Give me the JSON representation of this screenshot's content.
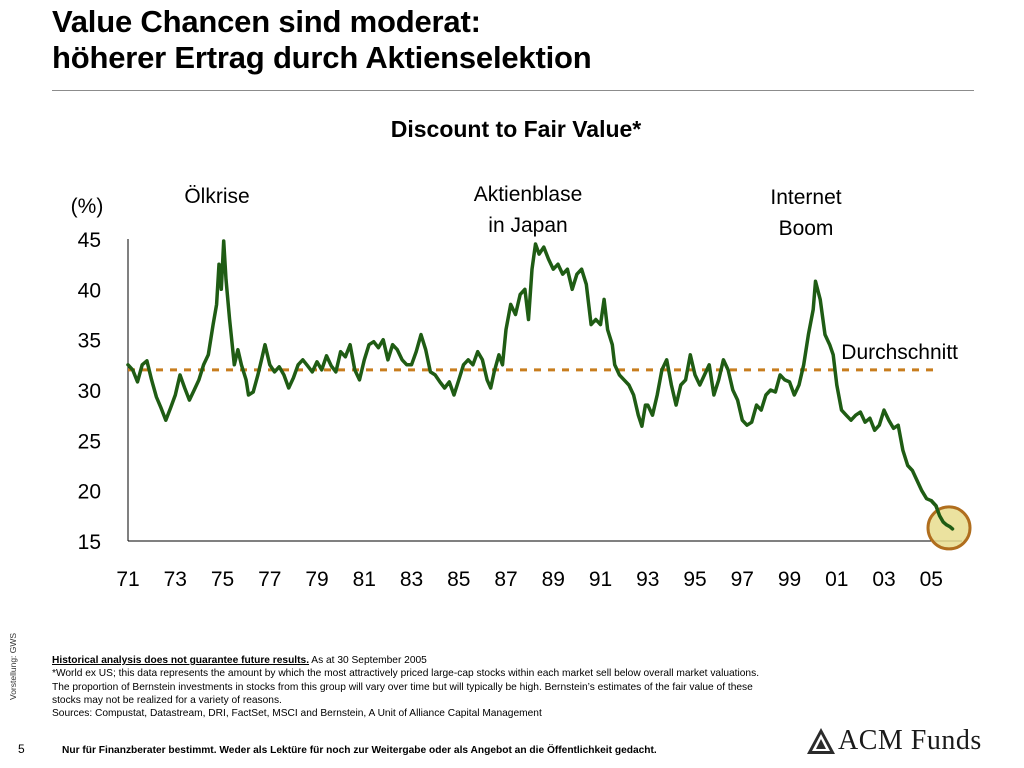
{
  "slide": {
    "title_line1": "Value Chancen sind moderat:",
    "title_line2": "höherer Ertrag durch Aktienselektion"
  },
  "chart_data": {
    "type": "line",
    "title": "Discount to Fair Value*",
    "ylabel": "(%)",
    "xlabel": "",
    "ylim": [
      15,
      45
    ],
    "yticks": [
      45,
      40,
      35,
      30,
      25,
      20,
      15
    ],
    "xlim": [
      1971,
      2006.3
    ],
    "xticks": [
      {
        "year": 1971,
        "label": "71"
      },
      {
        "year": 1973,
        "label": "73"
      },
      {
        "year": 1975,
        "label": "75"
      },
      {
        "year": 1977,
        "label": "77"
      },
      {
        "year": 1979,
        "label": "79"
      },
      {
        "year": 1981,
        "label": "81"
      },
      {
        "year": 1983,
        "label": "83"
      },
      {
        "year": 1985,
        "label": "85"
      },
      {
        "year": 1987,
        "label": "87"
      },
      {
        "year": 1989,
        "label": "89"
      },
      {
        "year": 1991,
        "label": "91"
      },
      {
        "year": 1993,
        "label": "93"
      },
      {
        "year": 1995,
        "label": "95"
      },
      {
        "year": 1997,
        "label": "97"
      },
      {
        "year": 1999,
        "label": "99"
      },
      {
        "year": 2001,
        "label": "01"
      },
      {
        "year": 2003,
        "label": "03"
      },
      {
        "year": 2005,
        "label": "05"
      }
    ],
    "grid": false,
    "series": [
      {
        "color": "#1f5c14",
        "points": [
          [
            1971.0,
            32.5
          ],
          [
            1971.2,
            32.0
          ],
          [
            1971.4,
            30.8
          ],
          [
            1971.6,
            32.5
          ],
          [
            1971.8,
            32.9
          ],
          [
            1972.0,
            31.0
          ],
          [
            1972.2,
            29.3
          ],
          [
            1972.4,
            28.2
          ],
          [
            1972.6,
            27.0
          ],
          [
            1972.8,
            28.2
          ],
          [
            1973.0,
            29.5
          ],
          [
            1973.2,
            31.5
          ],
          [
            1973.4,
            30.2
          ],
          [
            1973.6,
            29.0
          ],
          [
            1973.8,
            30.0
          ],
          [
            1974.0,
            31.0
          ],
          [
            1974.2,
            32.5
          ],
          [
            1974.4,
            33.5
          ],
          [
            1974.6,
            36.5
          ],
          [
            1974.75,
            38.5
          ],
          [
            1974.85,
            42.5
          ],
          [
            1974.95,
            40.0
          ],
          [
            1975.05,
            44.8
          ],
          [
            1975.15,
            41.0
          ],
          [
            1975.3,
            37.0
          ],
          [
            1975.5,
            32.5
          ],
          [
            1975.65,
            34.0
          ],
          [
            1975.8,
            32.5
          ],
          [
            1976.0,
            31.0
          ],
          [
            1976.1,
            29.5
          ],
          [
            1976.3,
            29.8
          ],
          [
            1976.5,
            31.5
          ],
          [
            1976.65,
            33.0
          ],
          [
            1976.8,
            34.5
          ],
          [
            1977.0,
            32.5
          ],
          [
            1977.2,
            31.8
          ],
          [
            1977.4,
            32.3
          ],
          [
            1977.6,
            31.5
          ],
          [
            1977.8,
            30.2
          ],
          [
            1978.0,
            31.2
          ],
          [
            1978.2,
            32.5
          ],
          [
            1978.4,
            33.0
          ],
          [
            1978.6,
            32.4
          ],
          [
            1978.8,
            31.8
          ],
          [
            1979.0,
            32.8
          ],
          [
            1979.2,
            32.0
          ],
          [
            1979.4,
            33.4
          ],
          [
            1979.6,
            32.4
          ],
          [
            1979.8,
            31.8
          ],
          [
            1980.0,
            33.8
          ],
          [
            1980.2,
            33.3
          ],
          [
            1980.4,
            34.5
          ],
          [
            1980.6,
            32.0
          ],
          [
            1980.8,
            31.0
          ],
          [
            1981.0,
            33.0
          ],
          [
            1981.2,
            34.5
          ],
          [
            1981.4,
            34.8
          ],
          [
            1981.6,
            34.2
          ],
          [
            1981.8,
            35.0
          ],
          [
            1982.0,
            33.0
          ],
          [
            1982.2,
            34.5
          ],
          [
            1982.4,
            34.0
          ],
          [
            1982.6,
            33.0
          ],
          [
            1982.8,
            32.5
          ],
          [
            1983.0,
            32.5
          ],
          [
            1983.2,
            33.8
          ],
          [
            1983.4,
            35.5
          ],
          [
            1983.6,
            34.0
          ],
          [
            1983.8,
            31.8
          ],
          [
            1984.0,
            31.5
          ],
          [
            1984.2,
            30.8
          ],
          [
            1984.4,
            30.2
          ],
          [
            1984.6,
            30.8
          ],
          [
            1984.8,
            29.5
          ],
          [
            1985.0,
            31.0
          ],
          [
            1985.2,
            32.5
          ],
          [
            1985.4,
            33.0
          ],
          [
            1985.6,
            32.5
          ],
          [
            1985.8,
            33.8
          ],
          [
            1986.0,
            33.0
          ],
          [
            1986.2,
            31.0
          ],
          [
            1986.35,
            30.2
          ],
          [
            1986.5,
            31.8
          ],
          [
            1986.7,
            33.5
          ],
          [
            1986.85,
            32.5
          ],
          [
            1987.0,
            36.0
          ],
          [
            1987.2,
            38.5
          ],
          [
            1987.4,
            37.5
          ],
          [
            1987.6,
            39.5
          ],
          [
            1987.8,
            40.0
          ],
          [
            1987.95,
            37.0
          ],
          [
            1988.1,
            42.0
          ],
          [
            1988.25,
            44.5
          ],
          [
            1988.4,
            43.5
          ],
          [
            1988.6,
            44.2
          ],
          [
            1988.8,
            43.0
          ],
          [
            1989.0,
            42.0
          ],
          [
            1989.2,
            42.5
          ],
          [
            1989.4,
            41.5
          ],
          [
            1989.6,
            42.0
          ],
          [
            1989.8,
            40.0
          ],
          [
            1990.0,
            41.5
          ],
          [
            1990.2,
            42.0
          ],
          [
            1990.4,
            40.5
          ],
          [
            1990.5,
            38.5
          ],
          [
            1990.6,
            36.5
          ],
          [
            1990.8,
            37.0
          ],
          [
            1991.0,
            36.5
          ],
          [
            1991.15,
            39.0
          ],
          [
            1991.3,
            36.0
          ],
          [
            1991.5,
            34.5
          ],
          [
            1991.6,
            32.5
          ],
          [
            1991.8,
            31.5
          ],
          [
            1992.0,
            31.0
          ],
          [
            1992.2,
            30.5
          ],
          [
            1992.4,
            29.5
          ],
          [
            1992.6,
            27.5
          ],
          [
            1992.75,
            26.4
          ],
          [
            1992.9,
            28.5
          ],
          [
            1993.0,
            28.5
          ],
          [
            1993.2,
            27.5
          ],
          [
            1993.4,
            29.5
          ],
          [
            1993.6,
            32.0
          ],
          [
            1993.8,
            33.0
          ],
          [
            1994.0,
            30.5
          ],
          [
            1994.2,
            28.5
          ],
          [
            1994.4,
            30.5
          ],
          [
            1994.6,
            31.0
          ],
          [
            1994.8,
            33.5
          ],
          [
            1995.0,
            31.5
          ],
          [
            1995.2,
            30.5
          ],
          [
            1995.4,
            31.5
          ],
          [
            1995.6,
            32.5
          ],
          [
            1995.8,
            29.5
          ],
          [
            1996.0,
            31.0
          ],
          [
            1996.2,
            33.0
          ],
          [
            1996.4,
            32.0
          ],
          [
            1996.6,
            30.0
          ],
          [
            1996.8,
            29.0
          ],
          [
            1997.0,
            27.0
          ],
          [
            1997.2,
            26.5
          ],
          [
            1997.4,
            26.8
          ],
          [
            1997.6,
            28.5
          ],
          [
            1997.8,
            28.0
          ],
          [
            1998.0,
            29.5
          ],
          [
            1998.2,
            30.0
          ],
          [
            1998.4,
            29.8
          ],
          [
            1998.6,
            31.5
          ],
          [
            1998.8,
            31.0
          ],
          [
            1999.0,
            30.8
          ],
          [
            1999.2,
            29.5
          ],
          [
            1999.4,
            30.5
          ],
          [
            1999.6,
            32.5
          ],
          [
            1999.8,
            35.5
          ],
          [
            2000.0,
            38.0
          ],
          [
            2000.1,
            40.8
          ],
          [
            2000.3,
            39.0
          ],
          [
            2000.5,
            35.5
          ],
          [
            2000.7,
            34.5
          ],
          [
            2000.85,
            33.5
          ],
          [
            2001.0,
            30.5
          ],
          [
            2001.2,
            28.0
          ],
          [
            2001.4,
            27.5
          ],
          [
            2001.6,
            27.0
          ],
          [
            2001.8,
            27.5
          ],
          [
            2002.0,
            27.8
          ],
          [
            2002.2,
            26.8
          ],
          [
            2002.4,
            27.2
          ],
          [
            2002.6,
            26.0
          ],
          [
            2002.8,
            26.5
          ],
          [
            2003.0,
            28.0
          ],
          [
            2003.2,
            27.0
          ],
          [
            2003.4,
            26.2
          ],
          [
            2003.6,
            26.5
          ],
          [
            2003.8,
            24.0
          ],
          [
            2004.0,
            22.5
          ],
          [
            2004.2,
            22.0
          ],
          [
            2004.4,
            21.0
          ],
          [
            2004.6,
            20.0
          ],
          [
            2004.8,
            19.2
          ],
          [
            2005.0,
            19.0
          ],
          [
            2005.2,
            18.5
          ],
          [
            2005.35,
            17.5
          ],
          [
            2005.5,
            16.9
          ],
          [
            2005.65,
            16.6
          ],
          [
            2005.8,
            16.4
          ],
          [
            2005.9,
            16.2
          ]
        ]
      }
    ],
    "reference_line": {
      "label": "Durchschnitt",
      "value": 32.0,
      "color": "#c87d1e"
    },
    "annotations": [
      {
        "id": "oelkrise",
        "lines": [
          "Ölkrise"
        ]
      },
      {
        "id": "aktienblase",
        "lines": [
          "Aktienblase",
          "in Japan"
        ]
      },
      {
        "id": "internet",
        "lines": [
          "Internet",
          "Boom"
        ]
      }
    ],
    "highlight_marker": {
      "year": 2005.75,
      "value": 16.3,
      "fill": "#e8dd8e",
      "stroke": "#b06e1e"
    }
  },
  "footnotes": {
    "heading": "Historical analysis does not guarantee future results.",
    "heading_suffix": " As at 30 September 2005",
    "lines": [
      "*World ex US; this data represents the amount by which the most attractively priced large-cap stocks within each market sell below overall market valuations.",
      "The proportion of Bernstein investments in stocks from this group will vary over time but will typically be high. Bernstein’s estimates of the fair value of these",
      "stocks may not be realized for a variety of reasons.",
      "Sources: Compustat, Datastream, DRI, FactSet, MSCI and Bernstein, A Unit of Alliance Capital Management"
    ]
  },
  "side_label": "Vorstellung: GWS",
  "footer": {
    "page_number": "5",
    "disclaimer": "Nur für Finanzberater bestimmt. Weder als Lektüre für noch zur Weitergabe oder als Angebot an die Öffentlichkeit gedacht.",
    "brand_text": "ACM Funds"
  }
}
